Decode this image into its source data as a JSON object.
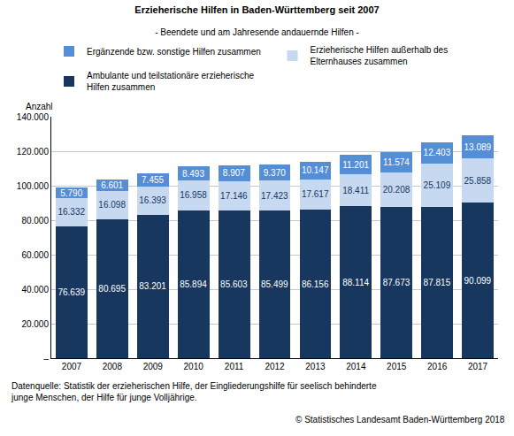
{
  "chart_data": {
    "type": "bar",
    "stacked": true,
    "title": "Erzieherische Hilfen in Baden-Württemberg seit 2007",
    "subtitle": "- Beendete und am Jahresende andauernde Hilfen -",
    "y_label": "Anzahl",
    "annotations": [
      "Datenquelle: Statistik der erzieherischen Hilfe, der Eingliederungshilfe für seelisch behinderte junge Menschen, der Hilfe für junge Volljährige.",
      "© Statistisches Landesamt Baden-Württemberg 2018"
    ],
    "categories": [
      "2007",
      "2008",
      "2009",
      "2010",
      "2011",
      "2012",
      "2013",
      "2014",
      "2015",
      "2016",
      "2017"
    ],
    "series": [
      {
        "name": "Ambulante und teilstationäre erzieherische Hilfen zusammen",
        "color": "#17375e",
        "values": [
          76639,
          80695,
          83201,
          85894,
          85603,
          85499,
          86156,
          88114,
          87673,
          87815,
          90099
        ],
        "value_labels": [
          "76.639",
          "80.695",
          "83.201",
          "85.894",
          "85.603",
          "85.499",
          "86.156",
          "88.114",
          "87.673",
          "87.815",
          "90.099"
        ]
      },
      {
        "name": "Erzieherische Hilfen außerhalb des Elternhauses zusammen",
        "color": "#c6d9f1",
        "values": [
          16332,
          16098,
          16393,
          16958,
          17146,
          17423,
          17617,
          18411,
          20208,
          25109,
          25858
        ],
        "value_labels": [
          "16.332",
          "16.098",
          "16.393",
          "16.958",
          "17.146",
          "17.423",
          "17.617",
          "18.411",
          "20.208",
          "25.109",
          "25.858"
        ]
      },
      {
        "name": "Ergänzende bzw. sonstige Hilfen zusammen",
        "color": "#558ed5",
        "values": [
          5790,
          6601,
          7455,
          8493,
          8907,
          9370,
          10147,
          11201,
          11574,
          12403,
          13089
        ],
        "value_labels": [
          "5.790",
          "6.601",
          "7.455",
          "8.493",
          "8.907",
          "9.370",
          "10.147",
          "11.201",
          "11.574",
          "12.403",
          "13.089"
        ]
      }
    ],
    "ylim": [
      0,
      140000
    ],
    "yticks": [
      {
        "value": 0,
        "label": "–"
      },
      {
        "value": 20000,
        "label": "20.000"
      },
      {
        "value": 40000,
        "label": "40.000"
      },
      {
        "value": 60000,
        "label": "60.000"
      },
      {
        "value": 80000,
        "label": "80.000"
      },
      {
        "value": 100000,
        "label": "100.000"
      },
      {
        "value": 120000,
        "label": "120.000"
      },
      {
        "value": 140000,
        "label": "140.000"
      }
    ],
    "grid": true,
    "data_labels": true,
    "legend": "top"
  }
}
